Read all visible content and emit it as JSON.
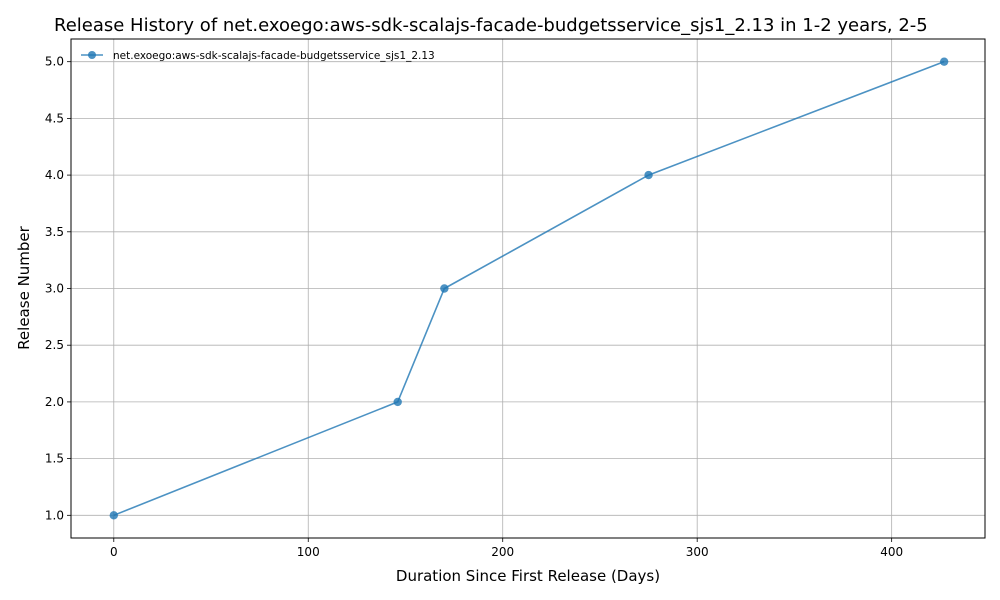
{
  "chart_data": {
    "type": "line",
    "title": "Release History of net.exoego:aws-sdk-scalajs-facade-budgetsservice_sjs1_2.13 in 1-2 years, 2-5",
    "xlabel": "Duration Since First Release (Days)",
    "ylabel": "Release Number",
    "xlim": [
      -22,
      448
    ],
    "ylim": [
      0.8,
      5.2
    ],
    "xticks": [
      0,
      100,
      200,
      300,
      400
    ],
    "yticks": [
      1.0,
      1.5,
      2.0,
      2.5,
      3.0,
      3.5,
      4.0,
      4.5,
      5.0
    ],
    "xtick_labels": [
      "0",
      "100",
      "200",
      "300",
      "400"
    ],
    "ytick_labels": [
      "1.0",
      "1.5",
      "2.0",
      "2.5",
      "3.0",
      "3.5",
      "4.0",
      "4.5",
      "5.0"
    ],
    "grid": true,
    "legend_position": "top-left",
    "series": [
      {
        "name": "net.exoego:aws-sdk-scalajs-facade-budgetsservice_sjs1_2.13",
        "color": "#1f77b4",
        "x": [
          0,
          146,
          170,
          275,
          427
        ],
        "y": [
          1,
          2,
          3,
          4,
          5
        ]
      }
    ]
  }
}
